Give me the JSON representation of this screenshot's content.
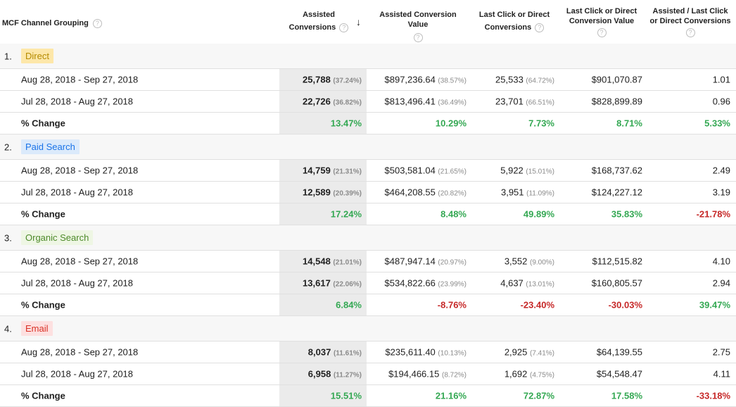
{
  "header": {
    "dimension": "MCF Channel Grouping",
    "col1_line1": "Assisted",
    "col1_line2": "Conversions",
    "col2": "Assisted Conversion Value",
    "col3_line1": "Last Click or Direct",
    "col3_line2": "Conversions",
    "col4_line1": "Last Click or Direct",
    "col4_line2": "Conversion Value",
    "col5_line1": "Assisted / Last Click",
    "col5_line2": "or Direct Conversions",
    "help_glyph": "?",
    "sort_glyph": "↓"
  },
  "groups": [
    {
      "index": "1.",
      "name": "Direct",
      "chip_bg": "#fde7a9",
      "chip_fg": "#b58a00",
      "rows": [
        {
          "label": "Aug 28, 2018 - Sep 27, 2018",
          "ac": "25,788",
          "ac_pct": "(37.24%)",
          "acv": "$897,236.64",
          "acv_pct": "(38.57%)",
          "lc": "25,533",
          "lc_pct": "(64.72%)",
          "lcv": "$901,070.87",
          "ratio": "1.01"
        },
        {
          "label": "Jul 28, 2018 - Aug 27, 2018",
          "ac": "22,726",
          "ac_pct": "(36.82%)",
          "acv": "$813,496.41",
          "acv_pct": "(36.49%)",
          "lc": "23,701",
          "lc_pct": "(66.51%)",
          "lcv": "$828,899.89",
          "ratio": "0.96"
        }
      ],
      "change": {
        "label": "% Change",
        "ac": "13.47%",
        "acv": "10.29%",
        "lc": "7.73%",
        "lcv": "8.71%",
        "ratio": "5.33%"
      }
    },
    {
      "index": "2.",
      "name": "Paid Search",
      "chip_bg": "#dbeafb",
      "chip_fg": "#1a73e8",
      "rows": [
        {
          "label": "Aug 28, 2018 - Sep 27, 2018",
          "ac": "14,759",
          "ac_pct": "(21.31%)",
          "acv": "$503,581.04",
          "acv_pct": "(21.65%)",
          "lc": "5,922",
          "lc_pct": "(15.01%)",
          "lcv": "$168,737.62",
          "ratio": "2.49"
        },
        {
          "label": "Jul 28, 2018 - Aug 27, 2018",
          "ac": "12,589",
          "ac_pct": "(20.39%)",
          "acv": "$464,208.55",
          "acv_pct": "(20.82%)",
          "lc": "3,951",
          "lc_pct": "(11.09%)",
          "lcv": "$124,227.12",
          "ratio": "3.19"
        }
      ],
      "change": {
        "label": "% Change",
        "ac": "17.24%",
        "acv": "8.48%",
        "lc": "49.89%",
        "lcv": "35.83%",
        "ratio": "-21.78%"
      }
    },
    {
      "index": "3.",
      "name": "Organic Search",
      "chip_bg": "#eef6e4",
      "chip_fg": "#4d8a2a",
      "rows": [
        {
          "label": "Aug 28, 2018 - Sep 27, 2018",
          "ac": "14,548",
          "ac_pct": "(21.01%)",
          "acv": "$487,947.14",
          "acv_pct": "(20.97%)",
          "lc": "3,552",
          "lc_pct": "(9.00%)",
          "lcv": "$112,515.82",
          "ratio": "4.10"
        },
        {
          "label": "Jul 28, 2018 - Aug 27, 2018",
          "ac": "13,617",
          "ac_pct": "(22.06%)",
          "acv": "$534,822.66",
          "acv_pct": "(23.99%)",
          "lc": "4,637",
          "lc_pct": "(13.01%)",
          "lcv": "$160,805.57",
          "ratio": "2.94"
        }
      ],
      "change": {
        "label": "% Change",
        "ac": "6.84%",
        "acv": "-8.76%",
        "lc": "-23.40%",
        "lcv": "-30.03%",
        "ratio": "39.47%"
      }
    },
    {
      "index": "4.",
      "name": "Email",
      "chip_bg": "#fde0e0",
      "chip_fg": "#d93025",
      "rows": [
        {
          "label": "Aug 28, 2018 - Sep 27, 2018",
          "ac": "8,037",
          "ac_pct": "(11.61%)",
          "acv": "$235,611.40",
          "acv_pct": "(10.13%)",
          "lc": "2,925",
          "lc_pct": "(7.41%)",
          "lcv": "$64,139.55",
          "ratio": "2.75"
        },
        {
          "label": "Jul 28, 2018 - Aug 27, 2018",
          "ac": "6,958",
          "ac_pct": "(11.27%)",
          "acv": "$194,466.15",
          "acv_pct": "(8.72%)",
          "lc": "1,692",
          "lc_pct": "(4.75%)",
          "lcv": "$54,548.47",
          "ratio": "4.11"
        }
      ],
      "change": {
        "label": "% Change",
        "ac": "15.51%",
        "acv": "21.16%",
        "lc": "72.87%",
        "lcv": "17.58%",
        "ratio": "-33.18%"
      }
    }
  ],
  "colors": {
    "positive": "#34a853",
    "negative": "#c62828",
    "sorted_column_bg": "#ebebeb"
  }
}
